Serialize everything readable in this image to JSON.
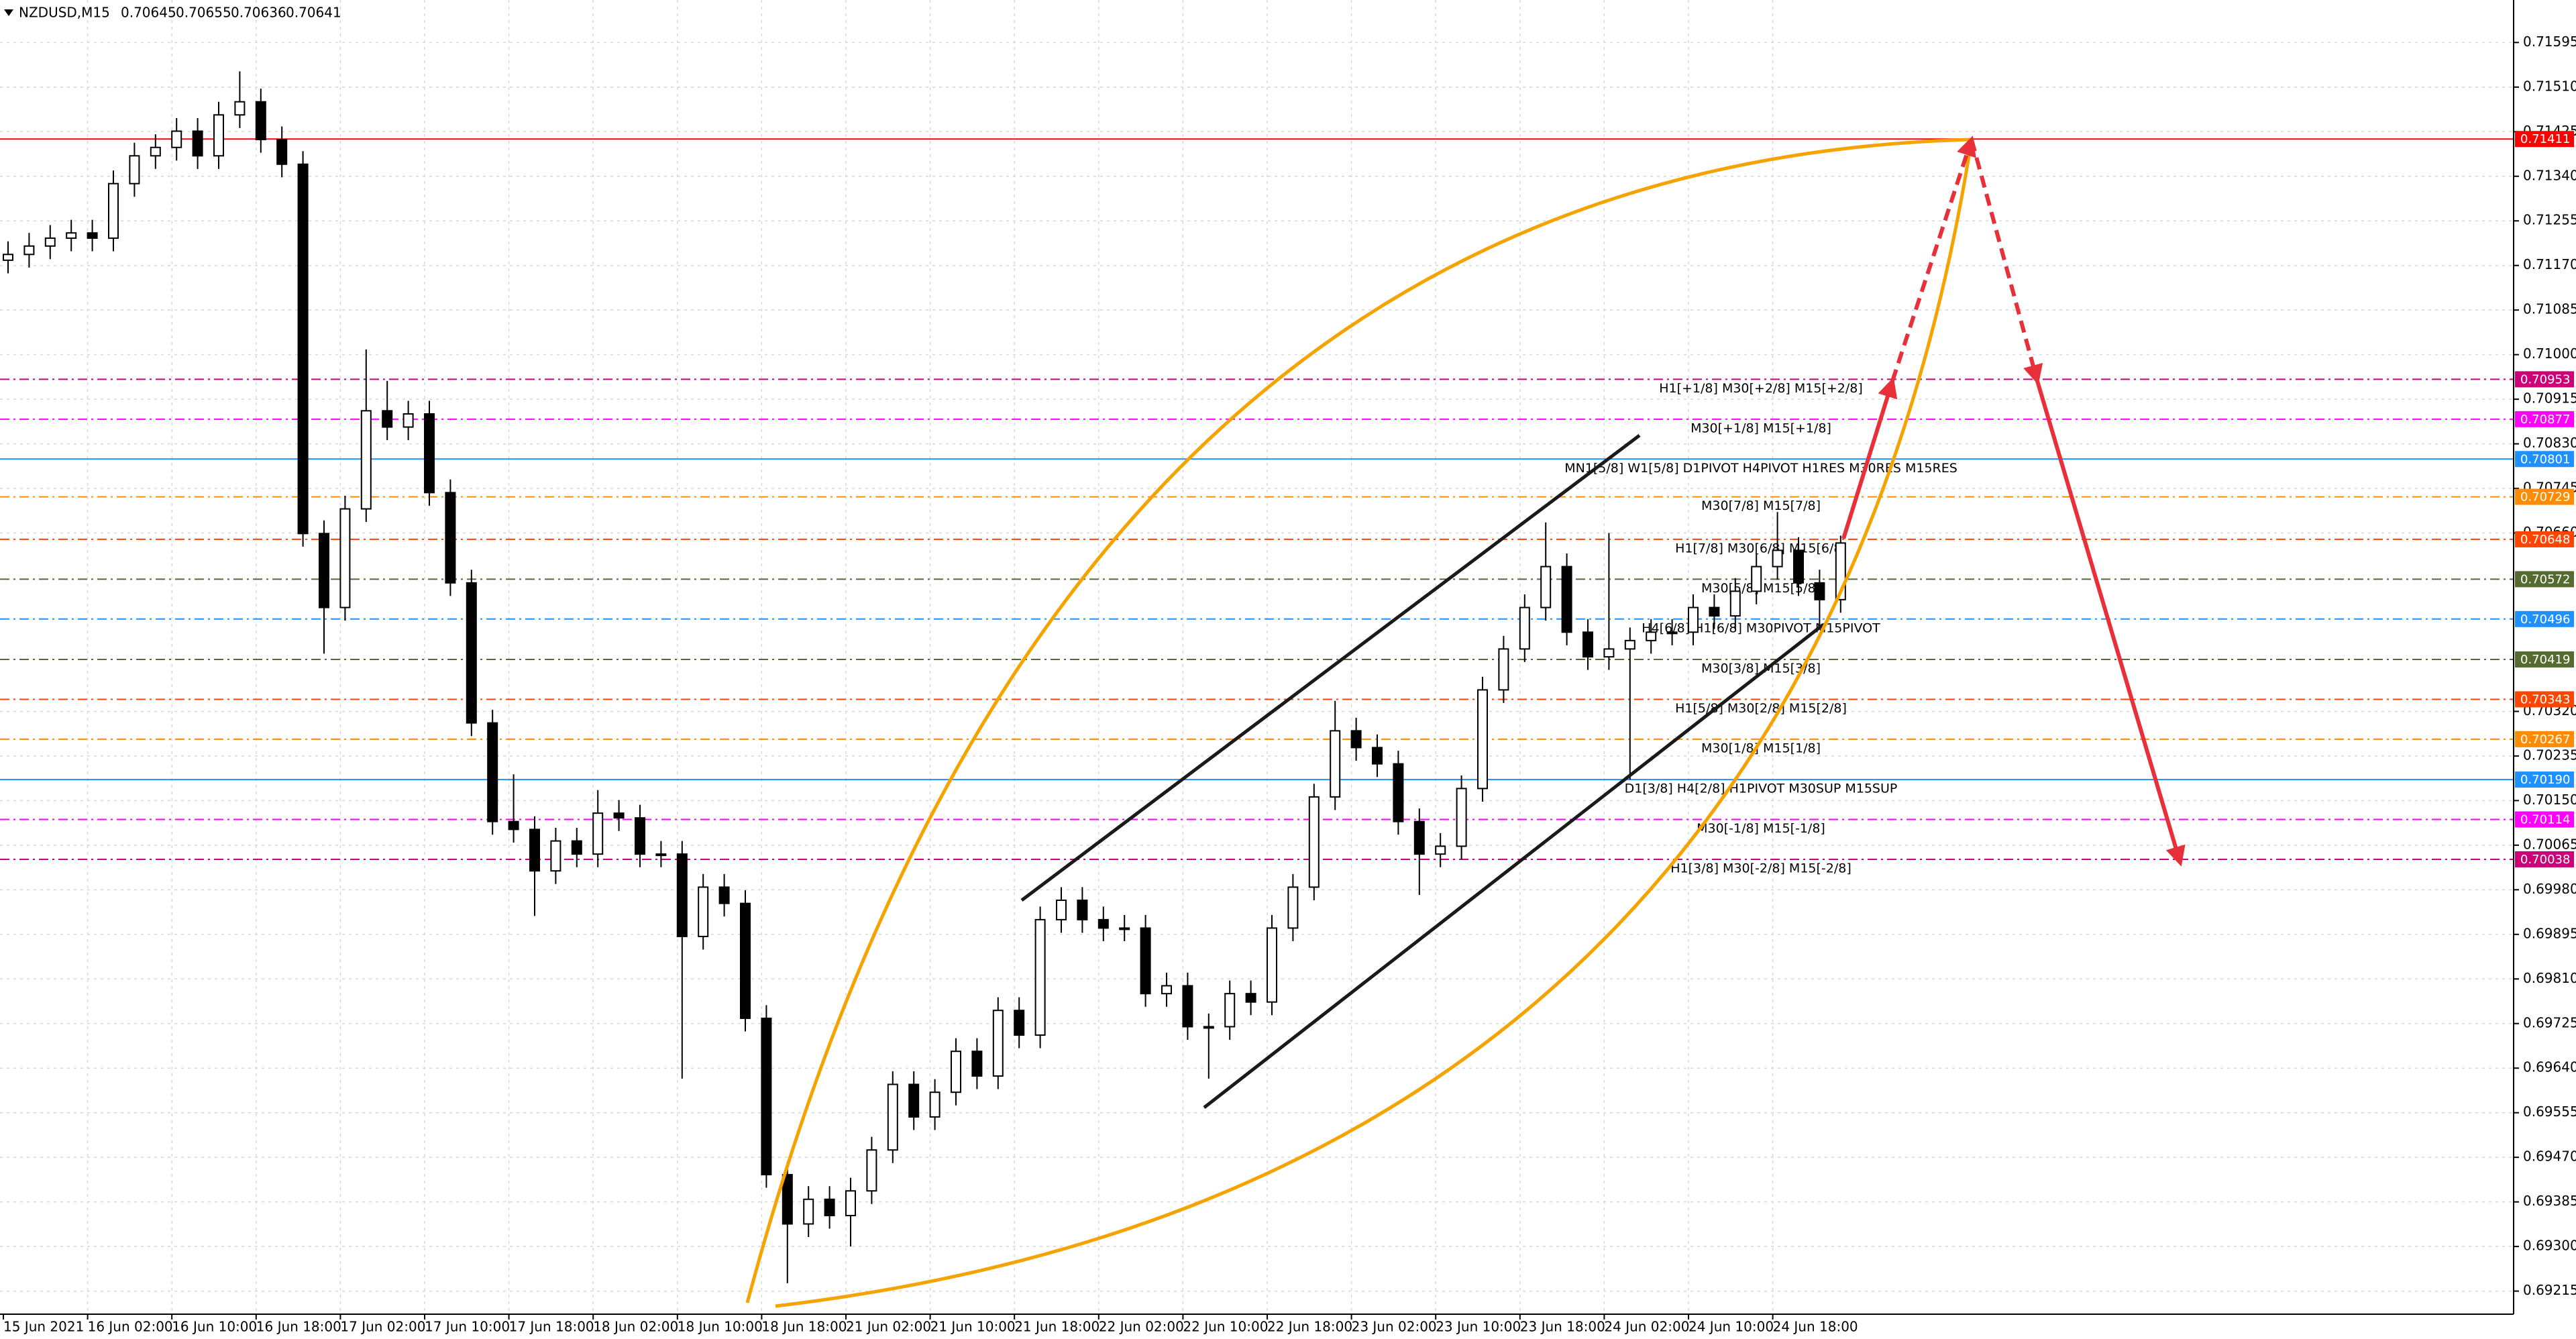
{
  "chart_data": {
    "type": "candlestick",
    "symbol": "NZDUSD,M15",
    "ohlc": [
      0.70645,
      0.70655,
      0.70636,
      0.70641
    ],
    "ylim": [
      0.69171,
      0.71676
    ],
    "yticks": [
      0.71595,
      {
        "value": 0.7151,
        "label": "0.71510"
      },
      0.71425,
      {
        "value": 0.7134,
        "label": "0.71340"
      },
      0.71255,
      {
        "value": 0.7117,
        "label": "0.71170"
      },
      0.71085,
      {
        "value": 0.71,
        "label": "0.71000"
      },
      0.70915,
      {
        "value": 0.7083,
        "label": "0.70830"
      },
      0.70745,
      {
        "value": 0.7066,
        "label": "0.70660"
      },
      {
        "value": 0.7032,
        "label": "0.70320"
      },
      0.70235,
      {
        "value": 0.7015,
        "label": "0.70150"
      },
      0.70065,
      {
        "value": 0.6998,
        "label": "0.69980"
      },
      0.69895,
      {
        "value": 0.6981,
        "label": "0.69810"
      },
      0.69725,
      {
        "value": 0.6964,
        "label": "0.69640"
      },
      0.69555,
      {
        "value": 0.6947,
        "label": "0.69470"
      },
      0.69385,
      {
        "value": 0.693,
        "label": "0.69300"
      },
      0.69215
    ],
    "grid": true,
    "categories": [
      "15 Jun 2021",
      "16 Jun 02:00",
      "16 Jun 10:00",
      "16 Jun 18:00",
      "17 Jun 02:00",
      "17 Jun 10:00",
      "17 Jun 18:00",
      "18 Jun 02:00",
      "18 Jun 10:00",
      "18 Jun 18:00",
      "21 Jun 02:00",
      "21 Jun 10:00",
      "21 Jun 18:00",
      "22 Jun 02:00",
      "22 Jun 10:00",
      "22 Jun 18:00",
      "23 Jun 02:00",
      "23 Jun 10:00",
      "23 Jun 18:00",
      "24 Jun 02:00",
      "24 Jun 10:00",
      "24 Jun 18:00"
    ],
    "candles": [
      [
        0.7118,
        0.71216,
        0.71155,
        0.71191
      ],
      [
        0.71191,
        0.71232,
        0.71166,
        0.71207
      ],
      [
        0.71207,
        0.71247,
        0.71182,
        0.71222
      ],
      [
        0.71222,
        0.71257,
        0.71197,
        0.71232
      ],
      [
        0.71232,
        0.71257,
        0.71197,
        0.71222
      ],
      [
        0.71222,
        0.71351,
        0.71197,
        0.71326
      ],
      [
        0.71326,
        0.71404,
        0.71301,
        0.71379
      ],
      [
        0.71379,
        0.7142,
        0.71354,
        0.71395
      ],
      [
        0.71395,
        0.71451,
        0.7137,
        0.71426
      ],
      [
        0.71426,
        0.71451,
        0.71354,
        0.71379
      ],
      [
        0.71379,
        0.71482,
        0.71354,
        0.71457
      ],
      [
        0.71457,
        0.7154,
        0.71432,
        0.71482
      ],
      [
        0.71482,
        0.71507,
        0.71385,
        0.7141
      ],
      [
        0.7141,
        0.71435,
        0.71338,
        0.71363
      ],
      [
        0.71363,
        0.71388,
        0.70634,
        0.70659
      ],
      [
        0.70659,
        0.70684,
        0.7043,
        0.70518
      ],
      [
        0.70518,
        0.70731,
        0.70493,
        0.70706
      ],
      [
        0.70706,
        0.7101,
        0.70681,
        0.70893
      ],
      [
        0.70893,
        0.7095,
        0.70837,
        0.70862
      ],
      [
        0.70862,
        0.70912,
        0.70837,
        0.70887
      ],
      [
        0.70887,
        0.70912,
        0.70712,
        0.70737
      ],
      [
        0.70737,
        0.70762,
        0.7054,
        0.70565
      ],
      [
        0.70565,
        0.7059,
        0.70273,
        0.70298
      ],
      [
        0.70298,
        0.70323,
        0.70085,
        0.7011
      ],
      [
        0.7011,
        0.702,
        0.7007,
        0.70095
      ],
      [
        0.70095,
        0.7012,
        0.6993,
        0.70016
      ],
      [
        0.70016,
        0.70098,
        0.69991,
        0.70073
      ],
      [
        0.70073,
        0.70098,
        0.70023,
        0.70048
      ],
      [
        0.70048,
        0.7017,
        0.70023,
        0.70126
      ],
      [
        0.70126,
        0.70151,
        0.70092,
        0.70117
      ],
      [
        0.70117,
        0.70142,
        0.70023,
        0.70048
      ],
      [
        0.70048,
        0.70073,
        0.70023,
        0.70048
      ],
      [
        0.70048,
        0.70073,
        0.6962,
        0.69891
      ],
      [
        0.69891,
        0.7001,
        0.69866,
        0.69985
      ],
      [
        0.69985,
        0.7001,
        0.69929,
        0.69954
      ],
      [
        0.69954,
        0.69979,
        0.6971,
        0.69735
      ],
      [
        0.69735,
        0.6976,
        0.69412,
        0.69437
      ],
      [
        0.69437,
        0.69462,
        0.6923,
        0.69343
      ],
      [
        0.69343,
        0.69415,
        0.69318,
        0.6939
      ],
      [
        0.6939,
        0.69415,
        0.69334,
        0.69359
      ],
      [
        0.69359,
        0.69431,
        0.693,
        0.69406
      ],
      [
        0.69406,
        0.69509,
        0.69381,
        0.69484
      ],
      [
        0.69484,
        0.69634,
        0.69459,
        0.69609
      ],
      [
        0.69609,
        0.69634,
        0.69522,
        0.69547
      ],
      [
        0.69547,
        0.69619,
        0.69522,
        0.69594
      ],
      [
        0.69594,
        0.69697,
        0.69569,
        0.69672
      ],
      [
        0.69672,
        0.69697,
        0.696,
        0.69625
      ],
      [
        0.69625,
        0.69775,
        0.696,
        0.6975
      ],
      [
        0.6975,
        0.69775,
        0.69678,
        0.69703
      ],
      [
        0.69703,
        0.69948,
        0.69678,
        0.69923
      ],
      [
        0.69923,
        0.69985,
        0.69898,
        0.6996
      ],
      [
        0.6996,
        0.69985,
        0.69898,
        0.69923
      ],
      [
        0.69923,
        0.69948,
        0.69882,
        0.69907
      ],
      [
        0.69907,
        0.69932,
        0.69882,
        0.69907
      ],
      [
        0.69907,
        0.69932,
        0.69757,
        0.69782
      ],
      [
        0.69782,
        0.69822,
        0.69757,
        0.69797
      ],
      [
        0.69797,
        0.69822,
        0.69694,
        0.69719
      ],
      [
        0.69719,
        0.69744,
        0.6962,
        0.69719
      ],
      [
        0.69719,
        0.69807,
        0.69694,
        0.69782
      ],
      [
        0.69782,
        0.69807,
        0.69741,
        0.69766
      ],
      [
        0.69766,
        0.69932,
        0.69741,
        0.69907
      ],
      [
        0.69907,
        0.7001,
        0.69882,
        0.69985
      ],
      [
        0.69985,
        0.70182,
        0.6996,
        0.70157
      ],
      [
        0.70157,
        0.7034,
        0.70132,
        0.70283
      ],
      [
        0.70283,
        0.70308,
        0.70226,
        0.70251
      ],
      [
        0.70251,
        0.70276,
        0.70195,
        0.7022
      ],
      [
        0.7022,
        0.70245,
        0.70085,
        0.7011
      ],
      [
        0.7011,
        0.70135,
        0.6997,
        0.70048
      ],
      [
        0.70048,
        0.70088,
        0.70023,
        0.70063
      ],
      [
        0.70063,
        0.70198,
        0.70038,
        0.70173
      ],
      [
        0.70173,
        0.70386,
        0.70148,
        0.70361
      ],
      [
        0.70361,
        0.70464,
        0.70336,
        0.70439
      ],
      [
        0.70439,
        0.70543,
        0.70414,
        0.70518
      ],
      [
        0.70518,
        0.7068,
        0.70493,
        0.70596
      ],
      [
        0.70596,
        0.70621,
        0.70446,
        0.70471
      ],
      [
        0.70471,
        0.70496,
        0.70399,
        0.70424
      ],
      [
        0.70424,
        0.7066,
        0.70399,
        0.70439
      ],
      [
        0.70439,
        0.7048,
        0.7019,
        0.70455
      ],
      [
        0.70455,
        0.70496,
        0.7043,
        0.70471
      ],
      [
        0.70471,
        0.70496,
        0.70446,
        0.70471
      ],
      [
        0.70471,
        0.70543,
        0.70446,
        0.70518
      ],
      [
        0.70518,
        0.70543,
        0.70477,
        0.70502
      ],
      [
        0.70502,
        0.70574,
        0.70477,
        0.70549
      ],
      [
        0.70549,
        0.70621,
        0.70524,
        0.70596
      ],
      [
        0.70596,
        0.707,
        0.70571,
        0.70627
      ],
      [
        0.70627,
        0.70652,
        0.7054,
        0.70565
      ],
      [
        0.70565,
        0.7059,
        0.7048,
        0.70533
      ],
      [
        0.70533,
        0.70655,
        0.70508,
        0.70641
      ]
    ],
    "levels": [
      {
        "price": 0.71411,
        "color": "#ff0000",
        "style": "solid"
      },
      {
        "price": 0.70953,
        "text": "H1[+1/8] M30[+2/8] M15[+2/8]",
        "color": "#cc0077",
        "style": "dashdot"
      },
      {
        "price": 0.70877,
        "text": "M30[+1/8] M15[+1/8]",
        "color": "#ff00ff",
        "style": "dashdot"
      },
      {
        "price": 0.70801,
        "text": "MN1[5/8] W1[5/8] D1PIVOT H4PIVOT H1RES M30RES M15RES",
        "color": "#1e90ff",
        "style": "solid"
      },
      {
        "price": 0.70729,
        "text": "M30[7/8] M15[7/8]",
        "color": "#ff8c00",
        "style": "dashdot"
      },
      {
        "price": 0.70648,
        "text": "H1[7/8] M30[6/8] M15[6/8]",
        "color": "#ff4500",
        "style": "dashdot"
      },
      {
        "price": 0.70572,
        "text": "M30[5/8] M15[5/8]",
        "color": "#556b2f",
        "style": "dashdot"
      },
      {
        "price": 0.70496,
        "text": "H4[6/8] H1[6/8] M30PIVOT M15PIVOT",
        "color": "#1e90ff",
        "style": "dashdot"
      },
      {
        "price": 0.70419,
        "text": "M30[3/8] M15[3/8]",
        "color": "#556b2f",
        "style": "dashdot"
      },
      {
        "price": 0.70343,
        "text": "H1[5/8] M30[2/8] M15[2/8]",
        "color": "#ff4500",
        "style": "dashdot"
      },
      {
        "price": 0.70267,
        "text": "M30[1/8] M15[1/8]",
        "color": "#ff8c00",
        "style": "dashdot"
      },
      {
        "price": {
          "value": 0.7019,
          "label": "0.70190"
        },
        "text": "D1[3/8] H4[2/8] H1PIVOT M30SUP M15SUP",
        "color": "#1e90ff",
        "style": "solid"
      },
      {
        "price": 0.70114,
        "text": "M30[-1/8] M15[-1/8]",
        "color": "#ff00ff",
        "style": "dashdot"
      },
      {
        "price": 0.70038,
        "text": "H1[3/8] M30[-2/8] M15[-2/8]",
        "color": "#cc0077",
        "style": "dashdot"
      }
    ]
  }
}
